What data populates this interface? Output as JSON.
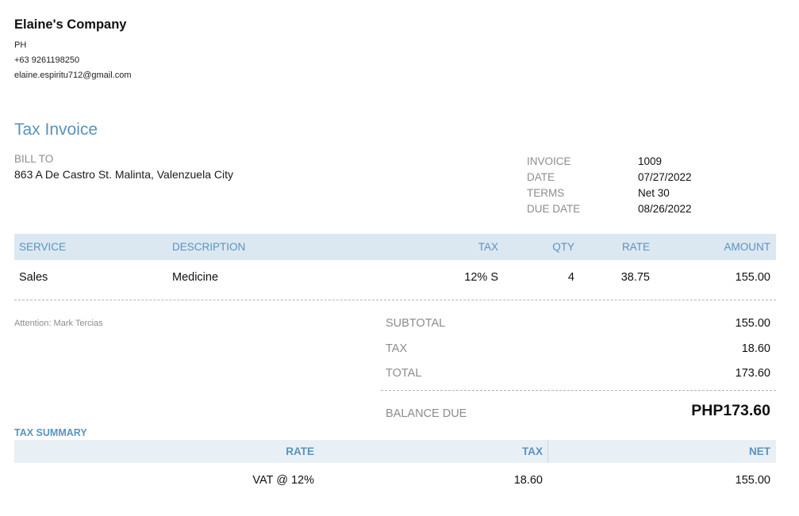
{
  "company": {
    "name": "Elaine's Company",
    "country": "PH",
    "phone": "+63 9261198250",
    "email": "elaine.espiritu712@gmail.com"
  },
  "document_title": "Tax Invoice",
  "bill_to": {
    "label": "BILL TO",
    "address": "863 A De Castro St. Malinta, Valenzuela City"
  },
  "meta": [
    {
      "label": "INVOICE",
      "value": "1009"
    },
    {
      "label": "DATE",
      "value": "07/27/2022"
    },
    {
      "label": "TERMS",
      "value": "Net 30"
    },
    {
      "label": "DUE DATE",
      "value": "08/26/2022"
    }
  ],
  "items": {
    "headers": {
      "service": "SERVICE",
      "description": "DESCRIPTION",
      "tax": "TAX",
      "qty": "QTY",
      "rate": "RATE",
      "amount": "AMOUNT"
    },
    "rows": [
      {
        "service": "Sales",
        "description": "Medicine",
        "tax": "12% S",
        "qty": "4",
        "rate": "38.75",
        "amount": "155.00"
      }
    ]
  },
  "attention": "Attention: Mark Tercias",
  "totals": [
    {
      "label": "SUBTOTAL",
      "value": "155.00"
    },
    {
      "label": "TAX",
      "value": "18.60"
    },
    {
      "label": "TOTAL",
      "value": "173.60"
    }
  ],
  "balance_due": {
    "label": "BALANCE DUE",
    "value": "PHP173.60"
  },
  "tax_summary": {
    "title": "TAX SUMMARY",
    "headers": {
      "rate": "RATE",
      "tax": "TAX",
      "net": "NET"
    },
    "rows": [
      {
        "rate": "VAT @ 12%",
        "tax": "18.60",
        "net": "155.00"
      }
    ]
  },
  "colors": {
    "accent": "#5a93bd",
    "header_bg": "#dce8f1",
    "summary_header_bg": "#e8f0f6",
    "label_grey": "#8c8c8c"
  }
}
